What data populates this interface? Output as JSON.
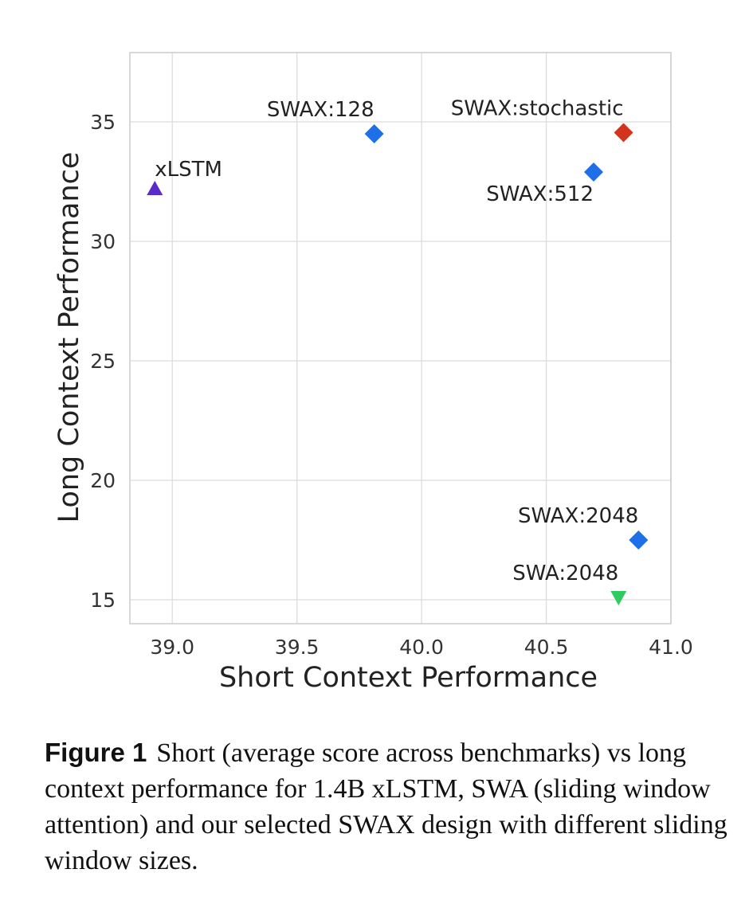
{
  "chart_data": {
    "type": "scatter",
    "xlabel": "Short Context Performance",
    "ylabel": "Long Context Performance",
    "xlim": [
      38.83,
      41.0
    ],
    "ylim": [
      14.0,
      37.9
    ],
    "xticks": [
      39.0,
      39.5,
      40.0,
      40.5,
      41.0
    ],
    "xtick_labels": [
      "39.0",
      "39.5",
      "40.0",
      "40.5",
      "41.0"
    ],
    "yticks": [
      15,
      20,
      25,
      30,
      35
    ],
    "ytick_labels": [
      "15",
      "20",
      "25",
      "30",
      "35"
    ],
    "grid": true,
    "points": [
      {
        "name": "xLSTM",
        "x": 38.93,
        "y": 32.2,
        "marker": "triangle-up",
        "color": "#5b2bc9",
        "label_anchor": "upper-right"
      },
      {
        "name": "SWAX:128",
        "x": 39.81,
        "y": 34.5,
        "marker": "diamond",
        "color": "#1f6fe8",
        "label_anchor": "upper-left"
      },
      {
        "name": "SWAX:stochastic",
        "x": 40.81,
        "y": 34.55,
        "marker": "diamond",
        "color": "#d4341c",
        "label_anchor": "upper-left"
      },
      {
        "name": "SWAX:512",
        "x": 40.69,
        "y": 32.9,
        "marker": "diamond",
        "color": "#1f6fe8",
        "label_anchor": "lower-left"
      },
      {
        "name": "SWAX:2048",
        "x": 40.87,
        "y": 17.5,
        "marker": "diamond",
        "color": "#1f6fe8",
        "label_anchor": "upper-left"
      },
      {
        "name": "SWA:2048",
        "x": 40.79,
        "y": 15.1,
        "marker": "triangle-down",
        "color": "#2ecc5f",
        "label_anchor": "upper-left"
      }
    ]
  },
  "caption": {
    "label": "Figure 1",
    "text": "Short (average score across benchmarks) vs long context performance for 1.4B xLSTM, SWA (sliding window attention) and our selected SWAX design with different sliding window sizes."
  }
}
